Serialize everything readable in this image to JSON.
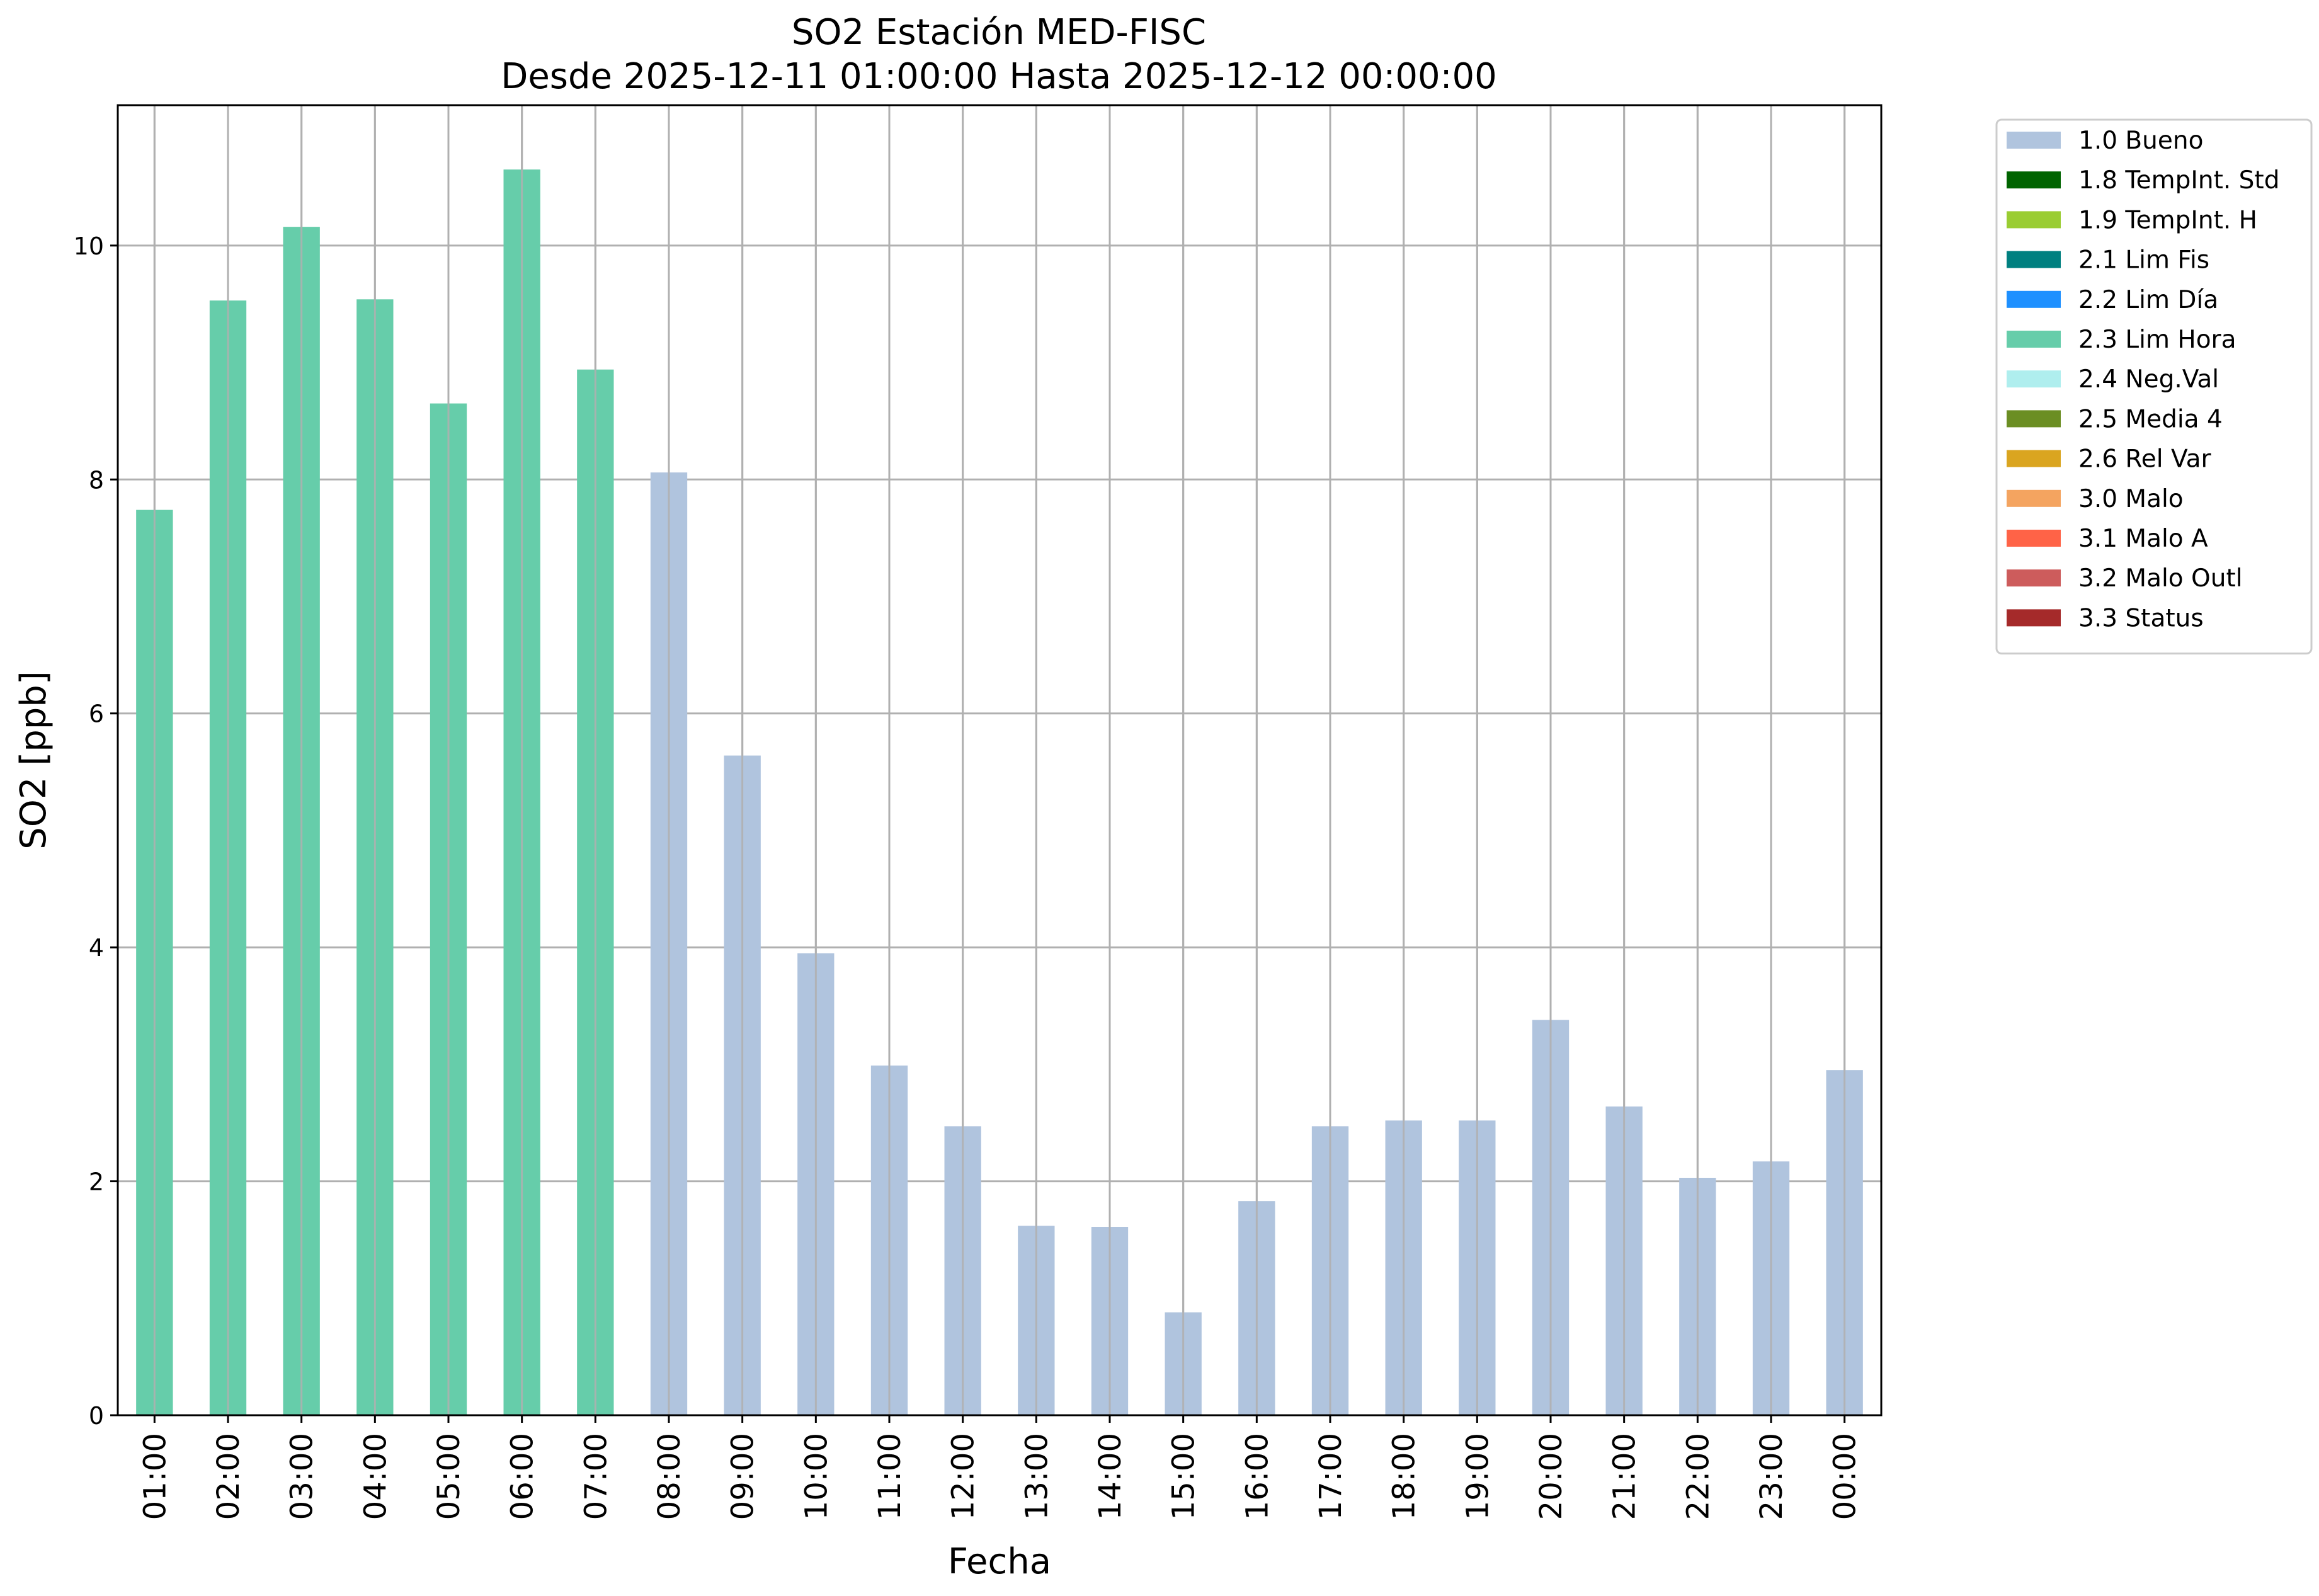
{
  "chart_data": {
    "type": "bar",
    "title": "SO2 Estación MED-FISC",
    "subtitle": "Desde 2025-12-11 01:00:00 Hasta 2025-12-12 00:00:00",
    "xlabel": "Fecha",
    "ylabel": "SO2 [ppb]",
    "ylim": [
      0,
      11.2
    ],
    "yticks": [
      0,
      2,
      4,
      6,
      8,
      10
    ],
    "grid": true,
    "legend_position": "outside-top-right",
    "categories": [
      "01:00",
      "02:00",
      "03:00",
      "04:00",
      "05:00",
      "06:00",
      "07:00",
      "08:00",
      "09:00",
      "10:00",
      "11:00",
      "12:00",
      "13:00",
      "14:00",
      "15:00",
      "16:00",
      "17:00",
      "18:00",
      "19:00",
      "20:00",
      "21:00",
      "22:00",
      "23:00",
      "00:00"
    ],
    "values": [
      7.74,
      9.53,
      10.16,
      9.54,
      8.65,
      10.65,
      8.94,
      8.06,
      5.64,
      3.95,
      2.99,
      2.47,
      1.62,
      1.61,
      0.88,
      1.83,
      2.47,
      2.52,
      2.52,
      3.38,
      2.64,
      2.03,
      2.17,
      2.95
    ],
    "flags": [
      "2.3 Lim Hora",
      "2.3 Lim Hora",
      "2.3 Lim Hora",
      "2.3 Lim Hora",
      "2.3 Lim Hora",
      "2.3 Lim Hora",
      "2.3 Lim Hora",
      "1.0 Bueno",
      "1.0 Bueno",
      "1.0 Bueno",
      "1.0 Bueno",
      "1.0 Bueno",
      "1.0 Bueno",
      "1.0 Bueno",
      "1.0 Bueno",
      "1.0 Bueno",
      "1.0 Bueno",
      "1.0 Bueno",
      "1.0 Bueno",
      "1.0 Bueno",
      "1.0 Bueno",
      "1.0 Bueno",
      "1.0 Bueno",
      "1.0 Bueno"
    ],
    "legend": [
      {
        "label": "1.0 Bueno",
        "color": "#b0c4de"
      },
      {
        "label": "1.8 TempInt. Std",
        "color": "#006400"
      },
      {
        "label": "1.9 TempInt. H",
        "color": "#9acd32"
      },
      {
        "label": "2.1 Lim Fis",
        "color": "#008080"
      },
      {
        "label": "2.2 Lim Día",
        "color": "#1e90ff"
      },
      {
        "label": "2.3 Lim Hora",
        "color": "#66cdaa"
      },
      {
        "label": "2.4 Neg.Val",
        "color": "#afeeee"
      },
      {
        "label": "2.5 Media 4",
        "color": "#6b8e23"
      },
      {
        "label": "2.6 Rel Var",
        "color": "#daa520"
      },
      {
        "label": "3.0 Malo",
        "color": "#f4a460"
      },
      {
        "label": "3.1 Malo A",
        "color": "#ff6347"
      },
      {
        "label": "3.2 Malo Outl",
        "color": "#cd5c5c"
      },
      {
        "label": "3.3 Status",
        "color": "#a52a2a"
      }
    ]
  }
}
